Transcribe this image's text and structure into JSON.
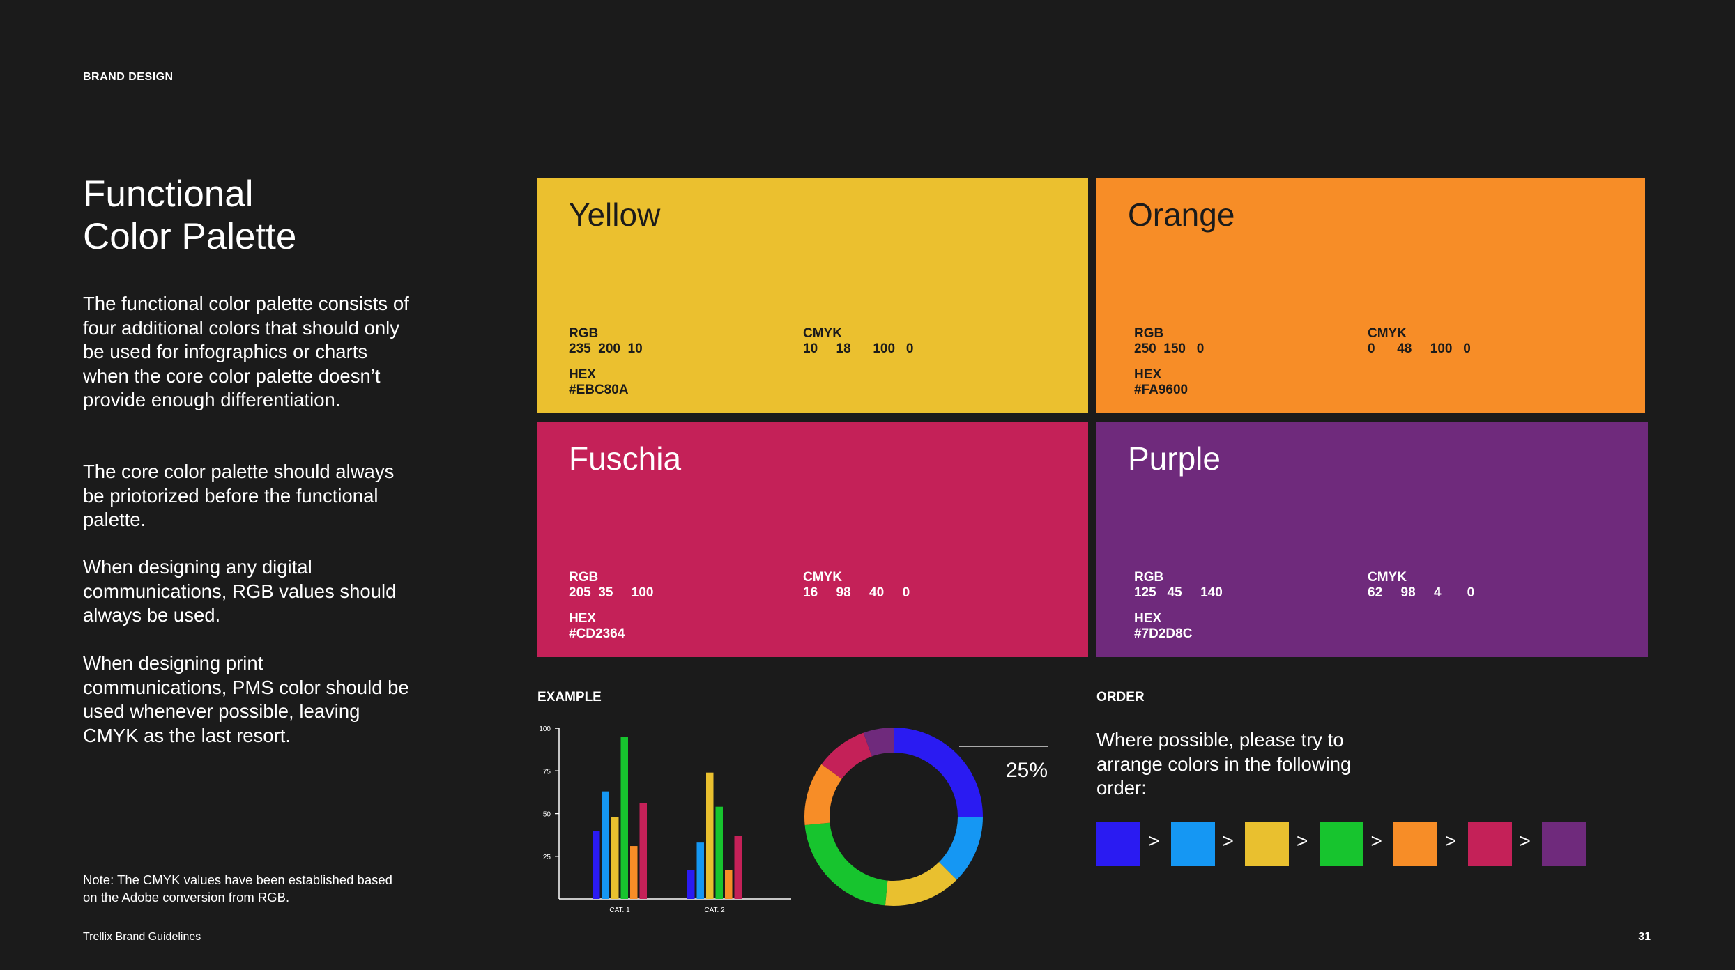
{
  "header": {
    "eyebrow": "BRAND DESIGN"
  },
  "left": {
    "title": "Functional\nColor Palette",
    "paragraphs": [
      "The functional color palette consists of four additional colors that should only be used for infographics or charts when the core color palette doesn’t provide enough differentiation.",
      "The core color palette should always be priotorized before the functional palette.",
      "When designing any digital communications, RGB values should always be used.",
      "When designing print communications, PMS color should be used whenever possible, leaving CMYK as the last resort."
    ],
    "note": "Note: The CMYK values have been established based on the Adobe conversion from RGB."
  },
  "swatches": [
    {
      "name": "Yellow",
      "color": "#EBC02F",
      "rgb_label": "RGB",
      "rgb": "235  200  10",
      "cmyk_label": "CMYK",
      "cmyk": "10     18      100   0",
      "hex_label": "HEX",
      "hex": "#EBC80A"
    },
    {
      "name": "Orange",
      "color": "#F78D27",
      "rgb_label": "RGB",
      "rgb": "250  150   0",
      "cmyk_label": "CMYK",
      "cmyk": "0      48     100   0",
      "hex_label": "HEX",
      "hex": "#FA9600"
    },
    {
      "name": "Fuschia",
      "color": "#C42158",
      "rgb_label": "RGB",
      "rgb": "205  35     100",
      "cmyk_label": "CMYK",
      "cmyk": "16     98     40     0",
      "hex_label": "HEX",
      "hex": "#CD2364"
    },
    {
      "name": "Purple",
      "color": "#6F2A7C",
      "rgb_label": "RGB",
      "rgb": "125   45     140",
      "cmyk_label": "CMYK",
      "cmyk": "62     98     4       0",
      "hex_label": "HEX",
      "hex": "#7D2D8C"
    }
  ],
  "example": {
    "label": "EXAMPLE"
  },
  "order": {
    "label": "ORDER",
    "text": "Where possible, please try to arrange colors in the following order:",
    "separator": ">",
    "colors": [
      "#2A1BF2",
      "#1597F3",
      "#E9C02F",
      "#17C42E",
      "#F78D27",
      "#C42158",
      "#6F2A7C"
    ]
  },
  "chart_data": [
    {
      "type": "bar",
      "categories": [
        "CAT. 1",
        "CAT. 2"
      ],
      "yticks": [
        25,
        50,
        75,
        100
      ],
      "ylim": [
        0,
        100
      ],
      "series": [
        {
          "color": "#2A1BF2",
          "values": [
            40,
            17
          ]
        },
        {
          "color": "#1597F3",
          "values": [
            63,
            33
          ]
        },
        {
          "color": "#E9C02F",
          "values": [
            48,
            74
          ]
        },
        {
          "color": "#17C42E",
          "values": [
            95,
            54
          ]
        },
        {
          "color": "#F78D27",
          "values": [
            31,
            17
          ]
        },
        {
          "color": "#C42158",
          "values": [
            56,
            37
          ]
        }
      ]
    },
    {
      "type": "pie",
      "annotation": "25%",
      "slices": [
        {
          "color": "#2A1BF2",
          "value": 25
        },
        {
          "color": "#1597F3",
          "value": 12.5
        },
        {
          "color": "#E9C02F",
          "value": 14
        },
        {
          "color": "#17C42E",
          "value": 22
        },
        {
          "color": "#F78D27",
          "value": 11.5
        },
        {
          "color": "#C42158",
          "value": 9.5
        },
        {
          "color": "#6F2A7C",
          "value": 5.5
        }
      ]
    }
  ],
  "footer": {
    "left": "Trellix Brand Guidelines",
    "page": "31"
  }
}
